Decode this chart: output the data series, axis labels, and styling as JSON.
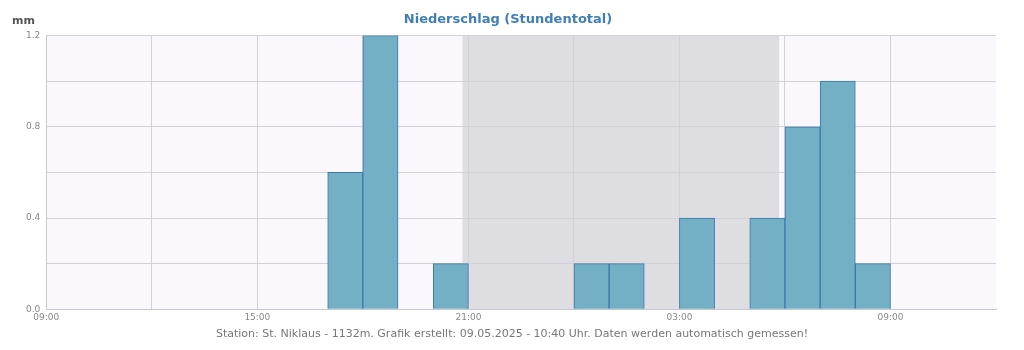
{
  "chart_data": {
    "type": "histogram",
    "title": "Niederschlag (Stundentotal)",
    "ylabel": "mm",
    "bins": [
      "2025-05-08T09:00",
      "2025-05-08T10:00",
      "2025-05-08T11:00",
      "2025-05-08T12:00",
      "2025-05-08T13:00",
      "2025-05-08T14:00",
      "2025-05-08T15:00",
      "2025-05-08T16:00",
      "2025-05-08T17:00",
      "2025-05-08T18:00",
      "2025-05-08T19:00",
      "2025-05-08T20:00",
      "2025-05-08T21:00",
      "2025-05-08T22:00",
      "2025-05-08T23:00",
      "2025-05-09T00:00",
      "2025-05-09T01:00",
      "2025-05-09T02:00",
      "2025-05-09T03:00",
      "2025-05-09T04:00",
      "2025-05-09T05:00",
      "2025-05-09T06:00",
      "2025-05-09T07:00",
      "2025-05-09T08:00",
      "2025-05-09T09:00",
      "2025-05-09T10:00",
      "2025-05-09T11:00"
    ],
    "values": [
      0,
      0,
      0,
      0,
      0,
      0,
      0,
      0,
      0.6,
      1.2,
      0,
      0.2,
      0,
      0,
      0,
      0.2,
      0.2,
      0,
      0.4,
      0,
      0.4,
      0.8,
      1.0,
      0.2,
      0,
      0
    ],
    "color": "#73b0c6",
    "xlim": [
      "2025-05-08T09:00",
      "2025-05-09T12:00"
    ],
    "xticks": [
      {
        "value": "2025-05-08T09:00",
        "label": "09:00"
      },
      {
        "value": "2025-05-08T12:00",
        "label": null
      },
      {
        "value": "2025-05-08T15:00",
        "label": "15:00"
      },
      {
        "value": "2025-05-08T18:00",
        "label": null
      },
      {
        "value": "2025-05-08T21:00",
        "label": "21:00"
      },
      {
        "value": "2025-05-09T00:00",
        "label": null
      },
      {
        "value": "2025-05-09T03:00",
        "label": "03:00"
      },
      {
        "value": "2025-05-09T06:00",
        "label": null
      },
      {
        "value": "2025-05-09T09:00",
        "label": "09:00"
      }
    ],
    "ylim": [
      0,
      1.2
    ],
    "yticks": [
      {
        "value": 0,
        "label": "0.0"
      },
      {
        "value": 0.2,
        "label": null
      },
      {
        "value": 0.4,
        "label": "0.4"
      },
      {
        "value": 0.6,
        "label": null
      },
      {
        "value": 0.8,
        "label": "0.8"
      },
      {
        "value": 1.0,
        "label": null
      },
      {
        "value": 1.2,
        "label": "1.2"
      }
    ],
    "bands": [
      {
        "axis": "x",
        "from": "2025-05-08T20:50",
        "to": "2025-05-09T05:50",
        "color": "#dedde2"
      }
    ],
    "grid": true,
    "legend": false,
    "annotations": [
      "Station: St. Niklaus - 1132m. Grafik erstellt: 09.05.2025 - 10:40 Uhr. Daten werden automatisch gemessen!"
    ]
  }
}
